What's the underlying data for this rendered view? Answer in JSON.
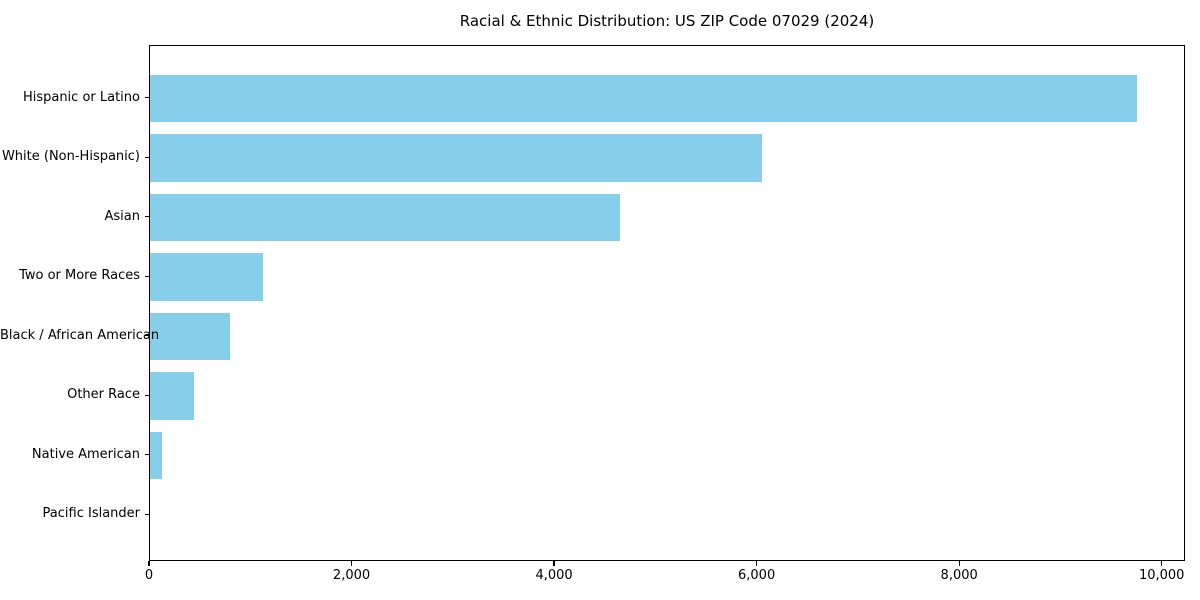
{
  "title": "Racial & Ethnic Distribution: US ZIP Code 07029 (2024)",
  "chart_data": {
    "type": "bar",
    "orientation": "horizontal",
    "title": "Racial & Ethnic Distribution: US ZIP Code 07029 (2024)",
    "categories": [
      "Hispanic or Latino",
      "White (Non-Hispanic)",
      "Asian",
      "Two or More Races",
      "Black / African American",
      "Other Race",
      "Native American",
      "Pacific Islander"
    ],
    "values": [
      9750,
      6040,
      4640,
      1120,
      790,
      430,
      120,
      0
    ],
    "xlabel": "",
    "ylabel": "",
    "xlim": [
      0,
      10230
    ],
    "xticks": {
      "values": [
        0,
        2000,
        4000,
        6000,
        8000,
        10000
      ],
      "labels": [
        "0",
        "2,000",
        "4,000",
        "6,000",
        "8,000",
        "10,000"
      ]
    },
    "grid": false,
    "legend_position": "none",
    "bar_color": "#87CEEB",
    "axis_color": "#000000",
    "background_color": "#ffffff"
  }
}
